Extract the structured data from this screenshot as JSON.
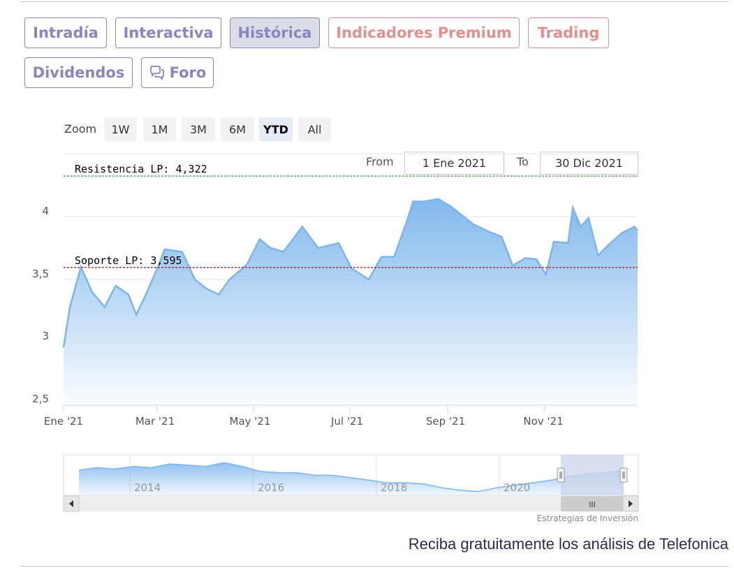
{
  "tabs": [
    {
      "label": "Intradía",
      "style": "normal"
    },
    {
      "label": "Interactiva",
      "style": "normal"
    },
    {
      "label": "Histórica",
      "style": "active"
    },
    {
      "label": "Indicadores Premium",
      "style": "premium"
    },
    {
      "label": "Trading",
      "style": "premium"
    },
    {
      "label": "Dividendos",
      "style": "normal"
    },
    {
      "label": "Foro",
      "style": "normal",
      "icon": "chat-bubbles-icon"
    }
  ],
  "zoom": {
    "label": "Zoom",
    "buttons": [
      "1W",
      "1M",
      "3M",
      "6M",
      "YTD",
      "All"
    ],
    "selected": "YTD"
  },
  "range": {
    "from_label": "From",
    "from_value": "1 Ene 2021",
    "to_label": "To",
    "to_value": "30 Dic 2021"
  },
  "colors": {
    "tab_text": "#8a84c2",
    "premium_text": "#e2908c",
    "series_line": "#7cb5ec",
    "resistance_line": "#2a8a2a",
    "support_line": "#a01010"
  },
  "chart_data": {
    "type": "area",
    "xlabel": "",
    "ylabel": "",
    "yticks": [
      "2,5",
      "3",
      "3,5",
      "4"
    ],
    "ylim": [
      2.5,
      4.5
    ],
    "xticks": [
      "Ene '21",
      "Mar '21",
      "May '21",
      "Jul '21",
      "Sep '21",
      "Nov '21"
    ],
    "grid": true,
    "series": [
      {
        "x": [
          "2021-01-01",
          "2021-01-05",
          "2021-01-12",
          "2021-01-19",
          "2021-01-27",
          "2021-02-03",
          "2021-02-11",
          "2021-02-16",
          "2021-02-22",
          "2021-03-01",
          "2021-03-06",
          "2021-03-17",
          "2021-03-25",
          "2021-04-01",
          "2021-04-09",
          "2021-04-16",
          "2021-04-27",
          "2021-05-05",
          "2021-05-12",
          "2021-05-20",
          "2021-06-01",
          "2021-06-11",
          "2021-06-24",
          "2021-07-02",
          "2021-07-13",
          "2021-07-21",
          "2021-07-29",
          "2021-08-06",
          "2021-08-10",
          "2021-08-17",
          "2021-08-26",
          "2021-09-03",
          "2021-09-11",
          "2021-09-17",
          "2021-09-27",
          "2021-10-05",
          "2021-10-12",
          "2021-10-20",
          "2021-10-27",
          "2021-11-02",
          "2021-11-07",
          "2021-11-16",
          "2021-11-19",
          "2021-11-24",
          "2021-11-29",
          "2021-12-05",
          "2021-12-12",
          "2021-12-20",
          "2021-12-28",
          "2021-12-30"
        ],
        "values": [
          2.96,
          3.28,
          3.6,
          3.4,
          3.28,
          3.45,
          3.38,
          3.22,
          3.38,
          3.58,
          3.74,
          3.72,
          3.5,
          3.43,
          3.38,
          3.5,
          3.62,
          3.82,
          3.75,
          3.72,
          3.92,
          3.75,
          3.79,
          3.59,
          3.5,
          3.68,
          3.68,
          3.96,
          4.12,
          4.12,
          4.14,
          4.08,
          4.0,
          3.94,
          3.88,
          3.84,
          3.61,
          3.67,
          3.66,
          3.54,
          3.8,
          3.79,
          4.07,
          3.92,
          3.99,
          3.69,
          3.78,
          3.87,
          3.92,
          3.89
        ]
      }
    ],
    "annotations": [
      {
        "label": "Resistencia LP: 4,322",
        "value": 4.322
      },
      {
        "label": "Soporte LP: 3,595",
        "value": 3.595
      }
    ],
    "navigator": {
      "xticks": [
        "2014",
        "2016",
        "2018",
        "2020"
      ],
      "values": [
        4.0,
        4.2,
        4.1,
        4.3,
        4.2,
        4.5,
        4.4,
        4.3,
        4.6,
        4.3,
        3.9,
        3.8,
        3.8,
        3.6,
        3.6,
        3.4,
        3.2,
        3.0,
        3.0,
        2.9,
        2.6,
        2.4,
        2.3,
        2.6,
        2.8,
        3.0,
        3.2,
        3.5,
        3.7,
        3.8,
        4.0
      ],
      "scroll_marker": "III"
    }
  },
  "credits": "Estrategias de Inversión",
  "promo": "Reciba gratuitamente los análisis de Telefonica"
}
